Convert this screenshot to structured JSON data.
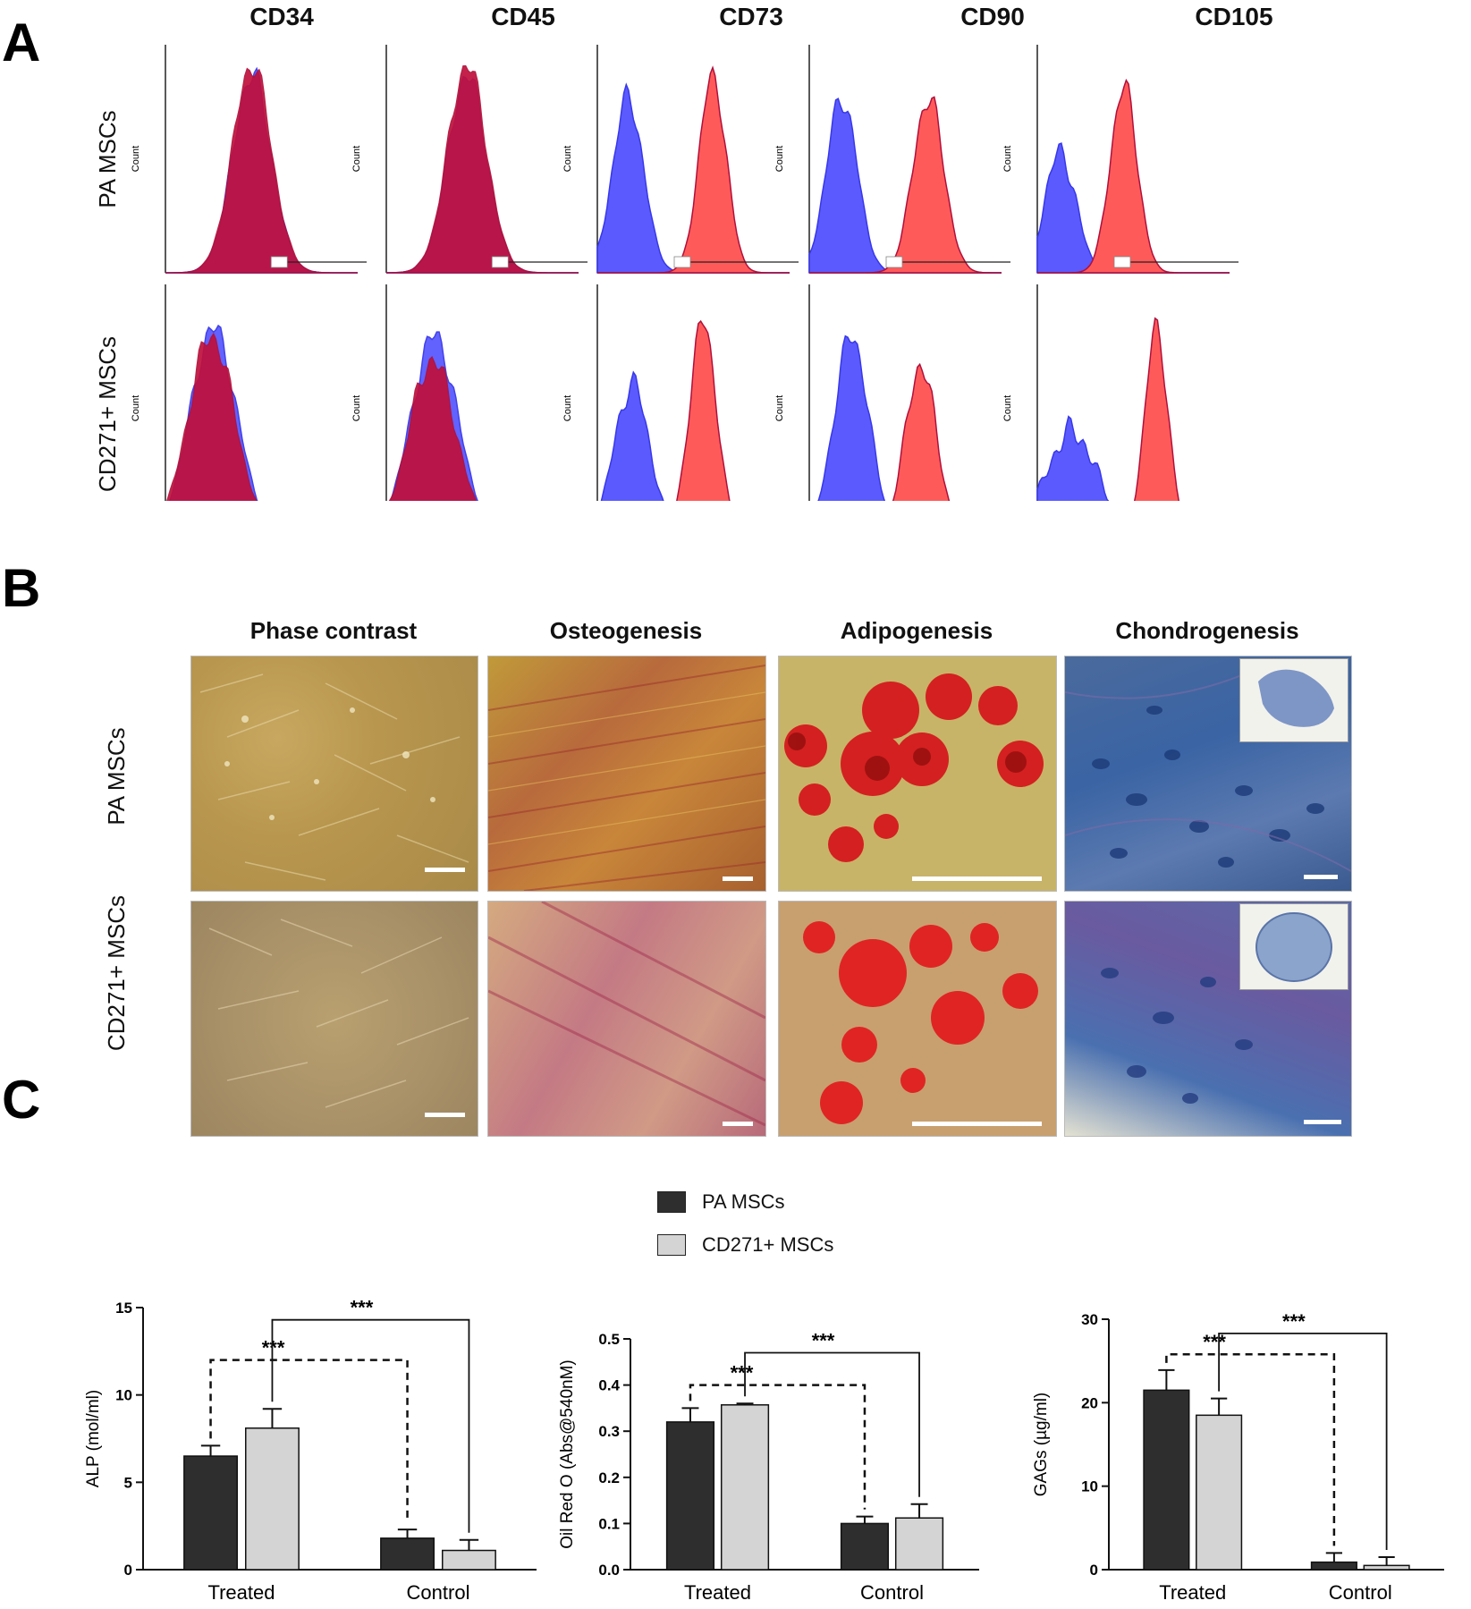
{
  "panels": {
    "a": "A",
    "b": "B",
    "c": "C"
  },
  "panel_a": {
    "markers": [
      "CD34",
      "CD45",
      "CD73",
      "CD90",
      "CD105"
    ],
    "rows": [
      "PA MSCs",
      "CD271+ MSCs"
    ],
    "y_label": "Count",
    "colors": {
      "isotype": "#3838e8",
      "isotype_fill": "#5a5aff",
      "marker": "#b0103a",
      "marker_fill": "#ff5a5a",
      "overlap": "#c0103c"
    }
  },
  "panel_b": {
    "columns": [
      "Phase contrast",
      "Osteogenesis",
      "Adipogenesis",
      "Chondrogenesis"
    ],
    "rows": [
      "PA MSCs",
      "CD271+ MSCs"
    ]
  },
  "chart_data": [
    {
      "type": "bar",
      "title": "",
      "ylabel": "ALP (mol/ml)",
      "xlabel": "",
      "categories": [
        "Treated",
        "Control"
      ],
      "ylim": [
        0,
        15
      ],
      "yticks": [
        "0",
        "5",
        "10",
        "15"
      ],
      "series": [
        {
          "name": "PA MSCs",
          "values": [
            6.5,
            1.8
          ],
          "errors": [
            0.6,
            0.5
          ],
          "color": "#2e2e2e"
        },
        {
          "name": "CD271+ MSCs",
          "values": [
            8.1,
            1.1
          ],
          "errors": [
            1.1,
            0.6
          ],
          "color": "#d4d4d4"
        }
      ],
      "significance": [
        {
          "label": "***",
          "style": "dashed",
          "from": "Treated PA MSCs",
          "to": "Control PA MSCs",
          "level": 12.0
        },
        {
          "label": "***",
          "style": "solid",
          "from": "Treated CD271+ MSCs",
          "to": "Control CD271+ MSCs",
          "level": 14.3
        }
      ]
    },
    {
      "type": "bar",
      "title": "",
      "ylabel": "Oil Red O (Abs@540nM)",
      "xlabel": "",
      "categories": [
        "Treated",
        "Control"
      ],
      "ylim": [
        0,
        0.5
      ],
      "yticks": [
        "0.0",
        "0.1",
        "0.2",
        "0.3",
        "0.4",
        "0.5"
      ],
      "series": [
        {
          "name": "PA MSCs",
          "values": [
            0.32,
            0.1
          ],
          "errors": [
            0.03,
            0.015
          ],
          "color": "#2e2e2e"
        },
        {
          "name": "CD271+ MSCs",
          "values": [
            0.357,
            0.112
          ],
          "errors": [
            0.003,
            0.03
          ],
          "color": "#d4d4d4"
        }
      ],
      "significance": [
        {
          "label": "***",
          "style": "dashed",
          "from": "Treated PA MSCs",
          "to": "Control PA MSCs",
          "level": 0.4
        },
        {
          "label": "***",
          "style": "solid",
          "from": "Treated CD271+ MSCs",
          "to": "Control CD271+ MSCs",
          "level": 0.47
        }
      ]
    },
    {
      "type": "bar",
      "title": "",
      "ylabel": "GAGs (µg/ml)",
      "xlabel": "",
      "categories": [
        "Treated",
        "Control"
      ],
      "ylim": [
        0,
        30
      ],
      "yticks": [
        "0",
        "10",
        "20",
        "30"
      ],
      "series": [
        {
          "name": "PA MSCs",
          "values": [
            21.5,
            0.9
          ],
          "errors": [
            2.4,
            1.1
          ],
          "color": "#2e2e2e"
        },
        {
          "name": "CD271+ MSCs",
          "values": [
            18.5,
            0.5
          ],
          "errors": [
            2.0,
            1.0
          ],
          "color": "#d4d4d4"
        }
      ],
      "significance": [
        {
          "label": "***",
          "style": "dashed",
          "from": "Treated PA MSCs",
          "to": "Control PA MSCs",
          "level": 25.8
        },
        {
          "label": "***",
          "style": "solid",
          "from": "Treated CD271+ MSCs",
          "to": "Control CD271+ MSCs",
          "level": 28.3
        }
      ]
    }
  ],
  "legend": [
    {
      "label": "PA MSCs",
      "color": "#2e2e2e"
    },
    {
      "label": "CD271+ MSCs",
      "color": "#d4d4d4"
    }
  ]
}
